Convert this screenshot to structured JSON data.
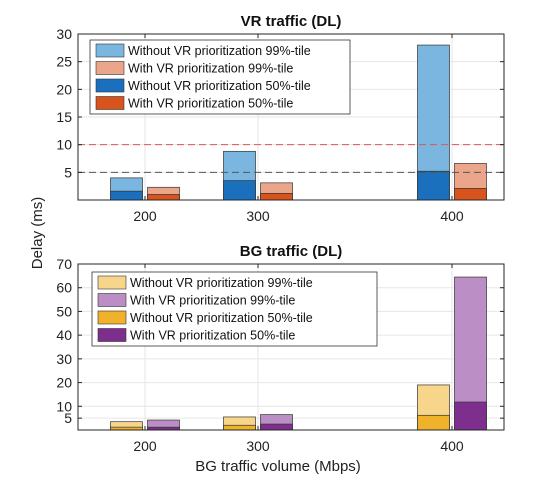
{
  "figure": {
    "ylabel": "Delay (ms)",
    "xlabel": "BG traffic volume (Mbps)"
  },
  "chart_data": [
    {
      "type": "bar",
      "title": "VR traffic (DL)",
      "categories": [
        "200",
        "300",
        "400"
      ],
      "ylim": [
        0,
        30
      ],
      "yticks": [
        5,
        10,
        15,
        20,
        25,
        30
      ],
      "grid": true,
      "legend_position": "top-left",
      "series": [
        {
          "name": "Without VR prioritization 99%-tile",
          "group": "without",
          "percentile": "99",
          "values": [
            4.0,
            8.8,
            28.0
          ],
          "color": "#7bb6e0"
        },
        {
          "name": "With VR prioritization 99%-tile",
          "group": "with",
          "percentile": "99",
          "values": [
            2.3,
            3.1,
            6.6
          ],
          "color": "#eba58a"
        },
        {
          "name": "Without VR prioritization 50%-tile",
          "group": "without",
          "percentile": "50",
          "values": [
            1.6,
            3.5,
            5.2
          ],
          "color": "#1a70bd"
        },
        {
          "name": "With VR prioritization  50%-tile",
          "group": "with",
          "percentile": "50",
          "values": [
            1.0,
            1.2,
            2.1
          ],
          "color": "#d9541c"
        }
      ],
      "reference_lines": [
        {
          "y": 10,
          "color": "#e05555",
          "style": "dashed"
        },
        {
          "y": 5,
          "color": "#555555",
          "style": "dashed"
        }
      ]
    },
    {
      "type": "bar",
      "title": "BG traffic (DL)",
      "categories": [
        "200",
        "300",
        "400"
      ],
      "ylim": [
        0,
        70
      ],
      "yticks": [
        5,
        10,
        20,
        30,
        40,
        50,
        60,
        70
      ],
      "grid": true,
      "legend_position": "top-left",
      "series": [
        {
          "name": "Without VR prioritization 99%-tile",
          "group": "without",
          "percentile": "99",
          "values": [
            3.5,
            5.5,
            19.0
          ],
          "color": "#f7d68c"
        },
        {
          "name": "With VR prioritization 99%-tile",
          "group": "with",
          "percentile": "99",
          "values": [
            4.2,
            6.5,
            64.5
          ],
          "color": "#bb8ec6"
        },
        {
          "name": "Without VR prioritization 50%-tile",
          "group": "without",
          "percentile": "50",
          "values": [
            1.2,
            2.0,
            6.2
          ],
          "color": "#efb22a"
        },
        {
          "name": "With VR prioritization  50%-tile",
          "group": "with",
          "percentile": "50",
          "values": [
            1.2,
            2.5,
            11.8
          ],
          "color": "#7e2f8e"
        }
      ]
    }
  ]
}
